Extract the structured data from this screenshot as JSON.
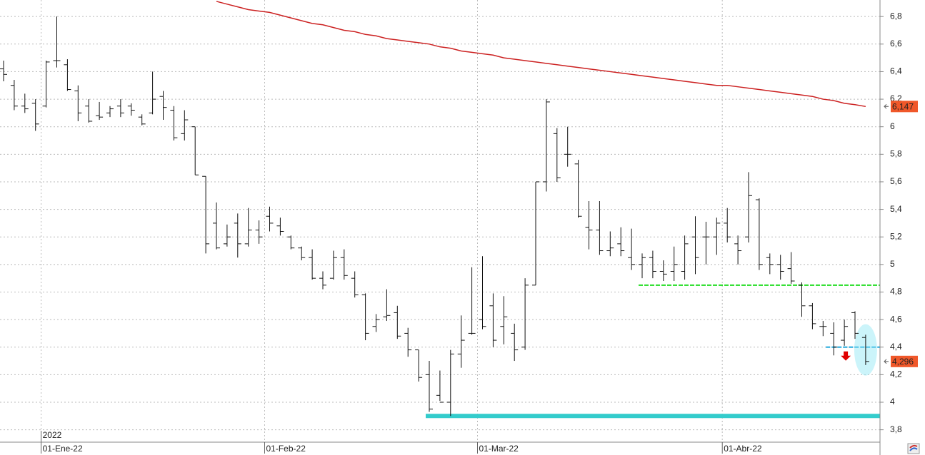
{
  "chart_data": {
    "type": "ohlc",
    "year_label": "2022",
    "categories": [
      null,
      null,
      null,
      null,
      "01-Ene-22",
      null,
      null,
      null,
      null,
      null,
      null,
      null,
      null,
      null,
      null,
      null,
      null,
      null,
      null,
      null,
      null,
      null,
      null,
      null,
      null,
      "01-Feb-22",
      null,
      null,
      null,
      null,
      null,
      null,
      null,
      null,
      null,
      null,
      null,
      null,
      null,
      null,
      null,
      null,
      null,
      null,
      null,
      "01-Mar-22",
      null,
      null,
      null,
      null,
      null,
      null,
      null,
      null,
      null,
      null,
      null,
      null,
      null,
      null,
      null,
      null,
      null,
      null,
      null,
      null,
      null,
      null,
      "01-Abr-22",
      null,
      null,
      null,
      null,
      null,
      null,
      null,
      null,
      null,
      null,
      null,
      null,
      null
    ],
    "open": [
      6.42,
      6.3,
      6.15,
      6.17,
      6.15,
      6.48,
      6.45,
      6.26,
      6.15,
      6.08,
      6.1,
      6.15,
      6.15,
      6.07,
      6.1,
      6.22,
      6.12,
      5.95,
      6.0,
      5.64,
      5.3,
      5.15,
      5.3,
      5.15,
      5.25,
      5.35,
      5.28,
      5.2,
      5.12,
      5.05,
      4.9,
      4.9,
      5.05,
      4.9,
      4.78,
      4.55,
      4.62,
      4.65,
      4.5,
      4.38,
      4.2,
      4.05,
      4.0,
      4.35,
      4.5,
      4.6,
      4.7,
      4.55,
      4.5,
      4.4,
      4.85,
      5.6,
      5.95,
      5.8,
      5.73,
      5.27,
      5.25,
      5.1,
      5.15,
      5.05,
      5.0,
      5.05,
      4.95,
      4.95,
      4.95,
      5.2,
      5.2,
      5.2,
      5.3,
      5.15,
      5.2,
      5.47,
      5.05,
      5.0,
      4.97,
      4.85,
      4.7,
      4.55,
      4.5,
      4.45,
      4.65,
      4.47
    ],
    "high": [
      6.48,
      6.34,
      6.24,
      6.2,
      6.48,
      6.8,
      6.49,
      6.3,
      6.2,
      6.18,
      6.15,
      6.2,
      6.17,
      6.09,
      6.4,
      6.26,
      6.15,
      6.12,
      6.0,
      5.64,
      5.45,
      5.29,
      5.37,
      5.41,
      5.32,
      5.42,
      5.34,
      5.21,
      5.13,
      5.11,
      4.95,
      5.1,
      5.11,
      4.95,
      4.79,
      4.64,
      4.82,
      4.7,
      4.54,
      4.38,
      4.3,
      4.23,
      4.38,
      4.63,
      4.98,
      5.06,
      4.79,
      4.77,
      4.57,
      4.9,
      5.6,
      6.2,
      5.99,
      6.0,
      5.76,
      5.46,
      5.46,
      5.24,
      5.27,
      5.26,
      5.08,
      5.1,
      5.03,
      5.13,
      5.21,
      5.35,
      5.31,
      5.34,
      5.41,
      5.21,
      5.67,
      5.48,
      5.08,
      5.07,
      5.09,
      4.87,
      4.72,
      4.59,
      4.58,
      4.6,
      4.66,
      4.49
    ],
    "low": [
      6.33,
      6.12,
      6.1,
      5.97,
      6.14,
      6.43,
      6.26,
      6.04,
      6.03,
      6.05,
      6.07,
      6.07,
      6.08,
      6.01,
      6.09,
      6.05,
      5.9,
      5.9,
      5.65,
      5.08,
      5.11,
      5.13,
      5.05,
      5.13,
      5.15,
      5.24,
      5.21,
      5.11,
      5.03,
      4.89,
      4.82,
      4.89,
      4.89,
      4.76,
      4.45,
      4.51,
      4.59,
      4.46,
      4.33,
      4.15,
      3.93,
      4.01,
      3.9,
      4.25,
      4.49,
      4.53,
      4.4,
      4.42,
      4.3,
      4.38,
      4.85,
      5.53,
      5.6,
      5.71,
      5.34,
      5.11,
      5.07,
      5.06,
      5.06,
      4.96,
      4.9,
      4.9,
      4.88,
      4.88,
      4.89,
      4.93,
      5.0,
      5.07,
      5.16,
      5.0,
      5.16,
      4.96,
      4.93,
      4.89,
      4.86,
      4.62,
      4.53,
      4.48,
      4.34,
      4.41,
      4.46,
      4.27
    ],
    "close": [
      6.38,
      6.15,
      6.13,
      6.02,
      6.47,
      6.48,
      6.27,
      6.1,
      6.04,
      6.07,
      6.13,
      6.1,
      6.12,
      6.02,
      6.2,
      6.14,
      5.92,
      6.05,
      5.65,
      5.15,
      5.12,
      5.2,
      5.15,
      5.25,
      5.2,
      5.3,
      5.24,
      5.12,
      5.05,
      4.9,
      4.85,
      5.05,
      4.92,
      4.78,
      4.5,
      4.6,
      4.63,
      4.48,
      4.38,
      4.18,
      3.95,
      4.0,
      4.35,
      4.45,
      4.5,
      4.55,
      4.45,
      4.62,
      4.38,
      4.85,
      5.6,
      6.18,
      5.63,
      5.8,
      5.35,
      5.25,
      5.1,
      5.12,
      5.1,
      5.0,
      5.05,
      4.95,
      4.93,
      5.0,
      5.15,
      5.05,
      5.2,
      5.3,
      5.2,
      5.1,
      5.5,
      5.0,
      5.0,
      4.95,
      4.88,
      4.7,
      4.57,
      4.55,
      4.4,
      4.55,
      4.5,
      4.296
    ],
    "close_last_label": "4,296",
    "bar_color": "#111111",
    "ma": {
      "color": "#cc2222",
      "last_label": "6,147",
      "values": [
        null,
        null,
        null,
        null,
        null,
        null,
        null,
        null,
        null,
        null,
        null,
        null,
        null,
        null,
        null,
        null,
        null,
        null,
        null,
        null,
        6.91,
        6.89,
        6.87,
        6.85,
        6.84,
        6.83,
        6.81,
        6.79,
        6.77,
        6.75,
        6.74,
        6.72,
        6.7,
        6.69,
        6.67,
        6.66,
        6.64,
        6.63,
        6.62,
        6.61,
        6.6,
        6.58,
        6.57,
        6.55,
        6.54,
        6.53,
        6.52,
        6.5,
        6.49,
        6.48,
        6.47,
        6.46,
        6.45,
        6.44,
        6.43,
        6.42,
        6.41,
        6.4,
        6.39,
        6.38,
        6.37,
        6.36,
        6.35,
        6.34,
        6.33,
        6.32,
        6.31,
        6.3,
        6.3,
        6.29,
        6.28,
        6.27,
        6.26,
        6.25,
        6.24,
        6.23,
        6.22,
        6.2,
        6.19,
        6.17,
        6.16,
        6.147
      ]
    },
    "levels": [
      {
        "value": 4.85,
        "color": "#22dd22",
        "style": "dashed"
      },
      {
        "value": 3.9,
        "color": "#33cccc",
        "style": "solid"
      },
      {
        "value": 4.4,
        "color": "#22aadd",
        "style": "dashed"
      }
    ],
    "label_box_color": "#f0582a",
    "ylim": [
      3.71,
      6.92
    ],
    "yticks": [
      {
        "value": 3.8,
        "label": "3,8"
      },
      4,
      {
        "value": 4.2,
        "label": "4,2"
      },
      {
        "value": 4.4,
        "label": "4,4"
      },
      {
        "value": 4.6,
        "label": "4,6"
      },
      {
        "value": 4.8,
        "label": "4,8"
      },
      5,
      {
        "value": 5.2,
        "label": "5,2"
      },
      {
        "value": 5.4,
        "label": "5,4"
      },
      {
        "value": 5.6,
        "label": "5,6"
      },
      {
        "value": 5.8,
        "label": "5,8"
      },
      6,
      {
        "value": 6.2,
        "label": "6,2"
      },
      {
        "value": 6.4,
        "label": "6,4"
      },
      {
        "value": 6.6,
        "label": "6,6"
      },
      {
        "value": 6.8,
        "label": "6,8"
      }
    ],
    "grid": true
  }
}
